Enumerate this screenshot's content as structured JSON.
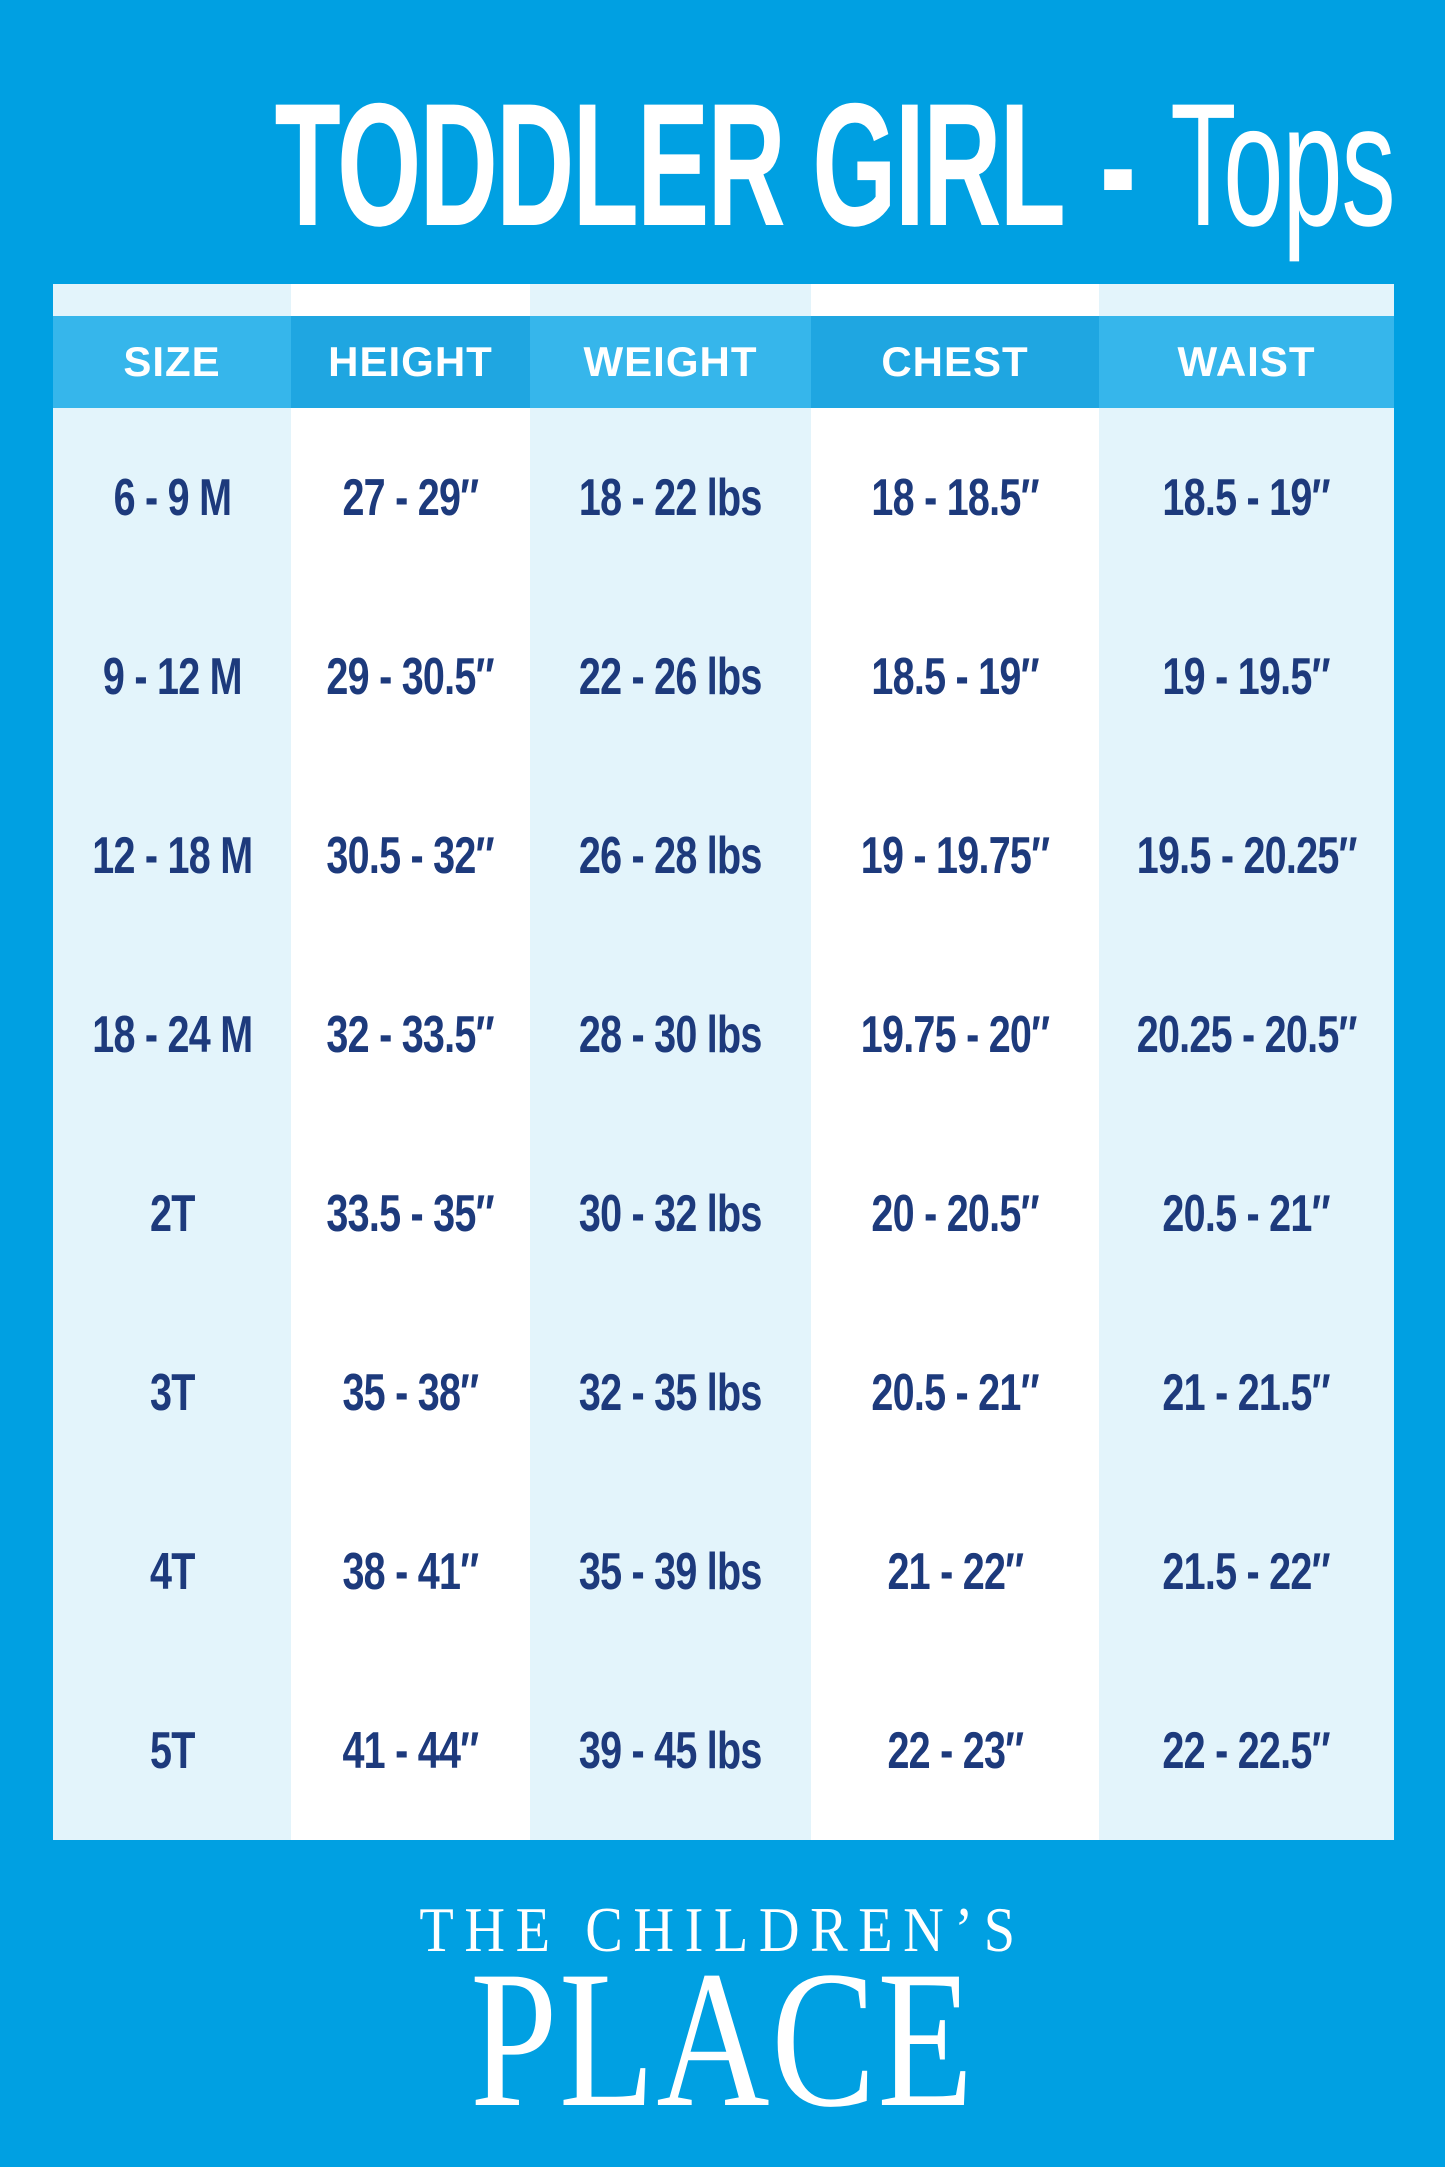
{
  "title": {
    "main": "TODDLER GIRL",
    "separator": "-",
    "sub": "Tops"
  },
  "table": {
    "columns": [
      {
        "label": "SIZE",
        "header_shade": "light",
        "column_shade": "tint"
      },
      {
        "label": "HEIGHT",
        "header_shade": "dark",
        "column_shade": "white"
      },
      {
        "label": "WEIGHT",
        "header_shade": "light",
        "column_shade": "tint"
      },
      {
        "label": "CHEST",
        "header_shade": "dark",
        "column_shade": "white"
      },
      {
        "label": "WAIST",
        "header_shade": "light",
        "column_shade": "tint"
      }
    ],
    "rows": [
      [
        "6 - 9 M",
        "27 - 29″",
        "18 - 22 lbs",
        "18 - 18.5″",
        "18.5 - 19″"
      ],
      [
        "9 - 12 M",
        "29 - 30.5″",
        "22 - 26 lbs",
        "18.5 - 19″",
        "19 - 19.5″"
      ],
      [
        "12 - 18 M",
        "30.5 - 32″",
        "26 - 28 lbs",
        "19 - 19.75″",
        "19.5 - 20.25″"
      ],
      [
        "18 - 24 M",
        "32 - 33.5″",
        "28 - 30 lbs",
        "19.75 - 20″",
        "20.25 - 20.5″"
      ],
      [
        "2T",
        "33.5 - 35″",
        "30 - 32 lbs",
        "20 - 20.5″",
        "20.5 - 21″"
      ],
      [
        "3T",
        "35 - 38″",
        "32 - 35 lbs",
        "20.5 - 21″",
        "21 - 21.5″"
      ],
      [
        "4T",
        "38 - 41″",
        "35 - 39 lbs",
        "21 - 22″",
        "21.5 - 22″"
      ],
      [
        "5T",
        "41 - 44″",
        "39 - 45 lbs",
        "22 - 23″",
        "22 - 22.5″"
      ]
    ]
  },
  "footer": {
    "line1": "THE CHILDREN’S",
    "line2": "PLACE"
  },
  "colors": {
    "page_bg": "#00A0E2",
    "header_light": "#36B6EB",
    "header_dark": "#1FA6E1",
    "column_tint": "#E3F4FB",
    "column_white": "#FFFFFF",
    "header_text": "#FFFFFF",
    "value_text": "#1D3A7C",
    "brand_text": "#FFFFFF"
  },
  "chart_data": {
    "type": "table",
    "title": "TODDLER GIRL - Tops",
    "columns": [
      "SIZE",
      "HEIGHT",
      "WEIGHT",
      "CHEST",
      "WAIST"
    ],
    "rows": [
      [
        "6 - 9 M",
        "27 - 29 in",
        "18 - 22 lbs",
        "18 - 18.5 in",
        "18.5 - 19 in"
      ],
      [
        "9 - 12 M",
        "29 - 30.5 in",
        "22 - 26 lbs",
        "18.5 - 19 in",
        "19 - 19.5 in"
      ],
      [
        "12 - 18 M",
        "30.5 - 32 in",
        "26 - 28 lbs",
        "19 - 19.75 in",
        "19.5 - 20.25 in"
      ],
      [
        "18 - 24 M",
        "32 - 33.5 in",
        "28 - 30 lbs",
        "19.75 - 20 in",
        "20.25 - 20.5 in"
      ],
      [
        "2T",
        "33.5 - 35 in",
        "30 - 32 lbs",
        "20 - 20.5 in",
        "20.5 - 21 in"
      ],
      [
        "3T",
        "35 - 38 in",
        "32 - 35 lbs",
        "20.5 - 21 in",
        "21 - 21.5 in"
      ],
      [
        "4T",
        "38 - 41 in",
        "35 - 39 lbs",
        "21 - 22 in",
        "21.5 - 22 in"
      ],
      [
        "5T",
        "41 - 44 in",
        "39 - 45 lbs",
        "22 - 23 in",
        "22 - 22.5 in"
      ]
    ],
    "brand": "THE CHILDREN'S PLACE"
  }
}
